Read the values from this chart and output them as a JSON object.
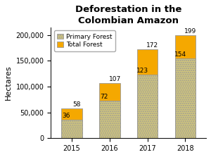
{
  "title": "Deforestation in the\nColombian Amazon",
  "ylabel": "Hectares",
  "years": [
    "2015",
    "2016",
    "2017",
    "2018"
  ],
  "primary_forest": [
    36000,
    72000,
    123000,
    154000
  ],
  "total_forest": [
    58000,
    107000,
    172000,
    199000
  ],
  "primary_labels": [
    "36",
    "72",
    "123",
    "154"
  ],
  "total_labels": [
    "58",
    "107",
    "172",
    "199"
  ],
  "primary_color": "#D4C87A",
  "total_color": "#F5A800",
  "bar_edge_color": "#999999",
  "ylim": [
    0,
    215000
  ],
  "yticks": [
    0,
    50000,
    100000,
    150000,
    200000
  ],
  "ytick_labels": [
    "0",
    "50,000",
    "100,000",
    "150,000",
    "200,000"
  ],
  "bg_color": "#FFFFFF",
  "legend_primary": "Primary Forest",
  "legend_total": "Total Forest",
  "title_fontsize": 9.5,
  "label_fontsize": 6.5,
  "axis_fontsize": 7,
  "ylabel_fontsize": 8,
  "bar_width": 0.55
}
